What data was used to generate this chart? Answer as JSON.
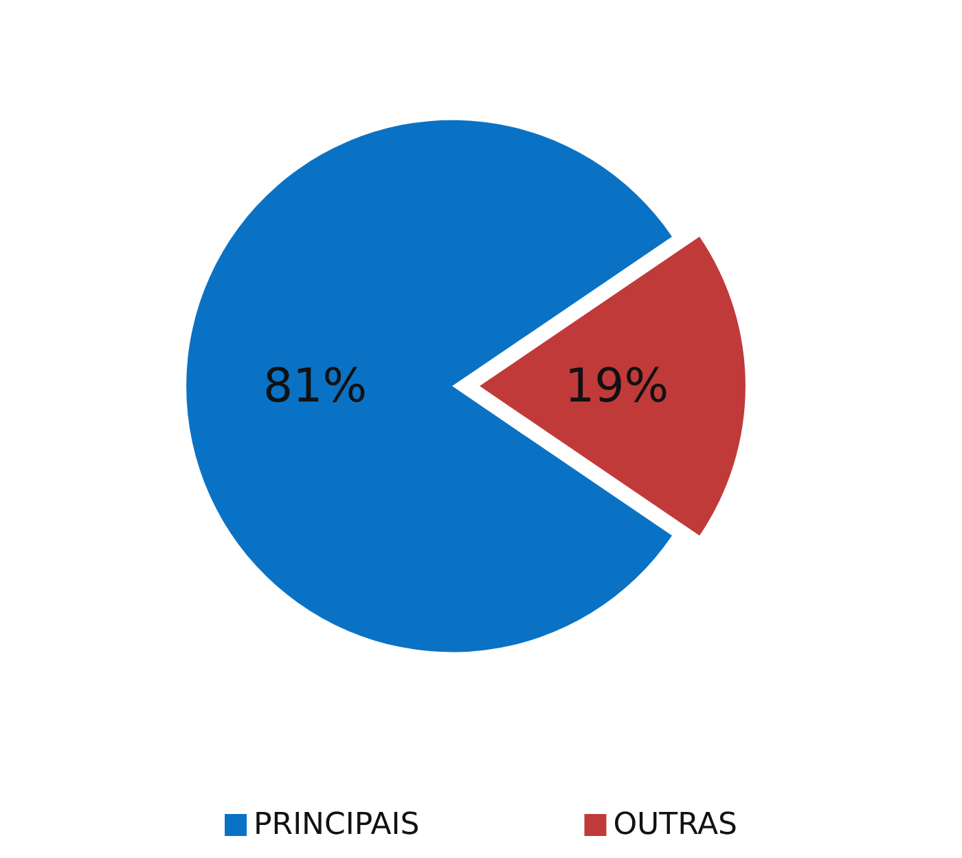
{
  "chart_data": {
    "type": "pie",
    "categories": [
      "PRINCIPAIS",
      "OUTRAS"
    ],
    "values": [
      81,
      19
    ],
    "colors": [
      "#0a72c4",
      "#c03a3a"
    ],
    "value_labels": [
      "81%",
      "19%"
    ],
    "legend": "bottom"
  }
}
